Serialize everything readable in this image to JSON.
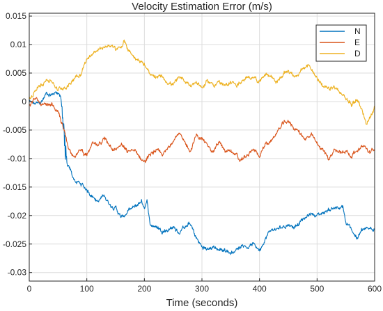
{
  "chart_data": {
    "type": "line",
    "title": "Velocity Estimation Error (m/s)",
    "xlabel": "Time (seconds)",
    "ylabel": "",
    "xlim": [
      0,
      600
    ],
    "ylim": [
      -0.0315,
      0.0155
    ],
    "xticks": [
      0,
      100,
      200,
      300,
      400,
      500,
      600
    ],
    "xtick_labels": [
      "0",
      "100",
      "200",
      "300",
      "400",
      "500",
      "600"
    ],
    "yticks": [
      0.015,
      0.01,
      0.005,
      0,
      -0.005,
      -0.01,
      -0.015,
      -0.02,
      -0.025,
      -0.03
    ],
    "ytick_labels": [
      "0.015",
      "0.01",
      "0.005",
      "0",
      "-0.005",
      "-0.01",
      "-0.015",
      "-0.02",
      "-0.025",
      "-0.03"
    ],
    "grid": true,
    "legend": "top-right",
    "noise_amplitude": 0.0004,
    "series": [
      {
        "name": "N",
        "color": "#0072BD",
        "x": [
          0,
          10,
          20,
          30,
          40,
          48,
          55,
          58,
          62,
          65,
          68,
          75,
          80,
          90,
          100,
          110,
          120,
          130,
          140,
          150,
          160,
          165,
          175,
          185,
          195,
          200,
          205,
          210,
          220,
          230,
          240,
          250,
          260,
          270,
          280,
          290,
          300,
          310,
          320,
          330,
          340,
          350,
          360,
          370,
          380,
          390,
          400,
          410,
          420,
          430,
          440,
          450,
          460,
          470,
          480,
          490,
          500,
          510,
          520,
          530,
          540,
          545,
          550,
          560,
          570,
          575,
          580,
          590,
          600
        ],
        "y": [
          0,
          -0.0005,
          -0.0003,
          0.0015,
          0.0012,
          0.0018,
          0.001,
          -0.003,
          -0.008,
          -0.011,
          -0.0115,
          -0.013,
          -0.014,
          -0.0145,
          -0.0155,
          -0.0165,
          -0.0175,
          -0.0165,
          -0.018,
          -0.0185,
          -0.0205,
          -0.02,
          -0.019,
          -0.0185,
          -0.0175,
          -0.0185,
          -0.0175,
          -0.0215,
          -0.022,
          -0.0225,
          -0.0225,
          -0.022,
          -0.023,
          -0.022,
          -0.0215,
          -0.024,
          -0.0255,
          -0.026,
          -0.0255,
          -0.026,
          -0.026,
          -0.0265,
          -0.026,
          -0.025,
          -0.0255,
          -0.025,
          -0.026,
          -0.024,
          -0.0225,
          -0.0225,
          -0.022,
          -0.0215,
          -0.022,
          -0.021,
          -0.0205,
          -0.0195,
          -0.02,
          -0.0195,
          -0.019,
          -0.0185,
          -0.019,
          -0.0185,
          -0.0215,
          -0.0225,
          -0.024,
          -0.023,
          -0.0225,
          -0.0225,
          -0.022
        ]
      },
      {
        "name": "E",
        "color": "#D95319",
        "x": [
          0,
          10,
          20,
          30,
          40,
          50,
          55,
          60,
          65,
          70,
          80,
          90,
          100,
          110,
          120,
          130,
          140,
          150,
          160,
          170,
          180,
          190,
          200,
          210,
          220,
          230,
          240,
          250,
          260,
          270,
          280,
          290,
          300,
          310,
          320,
          330,
          340,
          350,
          360,
          365,
          370,
          380,
          390,
          400,
          410,
          420,
          430,
          440,
          450,
          460,
          470,
          480,
          490,
          500,
          510,
          520,
          530,
          540,
          550,
          560,
          570,
          580,
          590,
          600
        ],
        "y": [
          -0.0005,
          0.0005,
          -0.0005,
          -0.001,
          -0.0005,
          -0.002,
          -0.0035,
          -0.005,
          -0.007,
          -0.0085,
          -0.0095,
          -0.0085,
          -0.0095,
          -0.0075,
          -0.008,
          -0.0065,
          -0.0075,
          -0.0085,
          -0.0075,
          -0.009,
          -0.0085,
          -0.0095,
          -0.0105,
          -0.0095,
          -0.0085,
          -0.0095,
          -0.0085,
          -0.0065,
          -0.0055,
          -0.0075,
          -0.0085,
          -0.006,
          -0.0065,
          -0.008,
          -0.0085,
          -0.007,
          -0.009,
          -0.0085,
          -0.0095,
          -0.0105,
          -0.01,
          -0.0095,
          -0.0085,
          -0.0095,
          -0.0075,
          -0.007,
          -0.0055,
          -0.004,
          -0.0035,
          -0.0045,
          -0.0055,
          -0.0065,
          -0.006,
          -0.0075,
          -0.0085,
          -0.01,
          -0.0085,
          -0.009,
          -0.0085,
          -0.0095,
          -0.0085,
          -0.0075,
          -0.009,
          -0.0085
        ]
      },
      {
        "name": "D",
        "color": "#EDB120",
        "x": [
          0,
          10,
          20,
          30,
          40,
          50,
          60,
          70,
          80,
          90,
          100,
          110,
          120,
          130,
          140,
          150,
          160,
          165,
          170,
          180,
          190,
          200,
          210,
          220,
          230,
          240,
          250,
          260,
          270,
          280,
          290,
          300,
          310,
          320,
          330,
          340,
          350,
          360,
          370,
          380,
          390,
          400,
          410,
          420,
          430,
          440,
          450,
          460,
          470,
          480,
          485,
          490,
          500,
          510,
          520,
          530,
          540,
          550,
          560,
          570,
          580,
          585,
          590,
          600
        ],
        "y": [
          0.0005,
          0.0015,
          0.003,
          0.004,
          0.0035,
          0.002,
          0.0025,
          0.003,
          0.0045,
          0.005,
          0.0075,
          0.0085,
          0.009,
          0.0095,
          0.01,
          0.009,
          0.0095,
          0.0105,
          0.0095,
          0.008,
          0.0075,
          0.0065,
          0.0045,
          0.004,
          0.0045,
          0.0035,
          0.003,
          0.004,
          0.0035,
          0.003,
          0.0035,
          0.0025,
          0.0035,
          0.003,
          0.0035,
          0.0025,
          0.0035,
          0.003,
          0.0035,
          0.004,
          0.0045,
          0.0035,
          0.005,
          0.0045,
          0.0035,
          0.0045,
          0.0055,
          0.0045,
          0.005,
          0.006,
          0.0065,
          0.0055,
          0.0045,
          0.0025,
          0.002,
          0.0025,
          0.0015,
          0.0005,
          -0.0005,
          0.0005,
          -0.002,
          -0.004,
          -0.003,
          -0.001
        ]
      }
    ]
  }
}
